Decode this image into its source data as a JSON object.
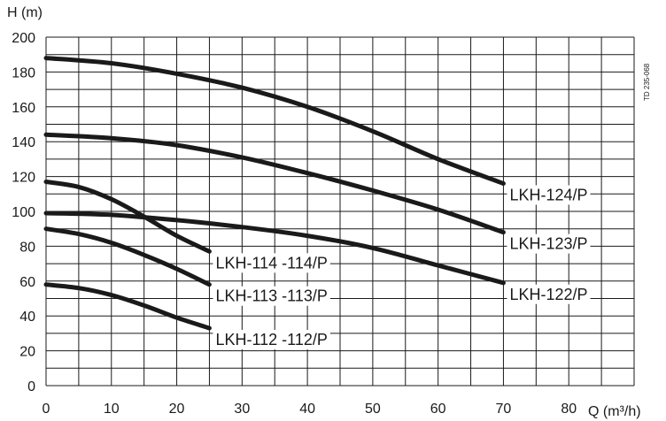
{
  "chart_data": {
    "type": "line",
    "ylabel": "H (m)",
    "xlabel": "Q (m³/h)",
    "doc_code": "TD 235-068",
    "xlim": [
      0,
      90
    ],
    "ylim": [
      0,
      200
    ],
    "x_ticks": [
      "0",
      "10",
      "20",
      "30",
      "40",
      "50",
      "60",
      "70",
      "80"
    ],
    "y_ticks": [
      "0",
      "20",
      "40",
      "60",
      "80",
      "100",
      "120",
      "140",
      "160",
      "180",
      "200"
    ],
    "grid": true,
    "series": [
      {
        "name": "LKH-124/P",
        "x": [
          0,
          10,
          20,
          30,
          40,
          50,
          60,
          70
        ],
        "y": [
          188,
          185,
          179,
          171,
          160,
          146,
          130,
          116
        ]
      },
      {
        "name": "LKH-123/P",
        "x": [
          0,
          10,
          20,
          30,
          40,
          50,
          60,
          70
        ],
        "y": [
          144,
          142,
          138,
          131,
          122,
          112,
          101,
          88
        ]
      },
      {
        "name": "LKH-122/P",
        "x": [
          0,
          10,
          20,
          30,
          40,
          50,
          60,
          70
        ],
        "y": [
          99,
          98,
          95,
          91,
          86,
          79,
          69,
          59
        ]
      },
      {
        "name": "LKH-114 -114/P",
        "x": [
          0,
          5,
          10,
          15,
          20,
          25
        ],
        "y": [
          117,
          114,
          107,
          97,
          86,
          77
        ]
      },
      {
        "name": "LKH-113 -113/P",
        "x": [
          0,
          5,
          10,
          15,
          20,
          25
        ],
        "y": [
          90,
          87,
          82,
          75,
          67,
          58
        ]
      },
      {
        "name": "LKH-112 -112/P",
        "x": [
          0,
          5,
          10,
          15,
          20,
          25
        ],
        "y": [
          58,
          56,
          52,
          46,
          39,
          33
        ]
      }
    ]
  }
}
